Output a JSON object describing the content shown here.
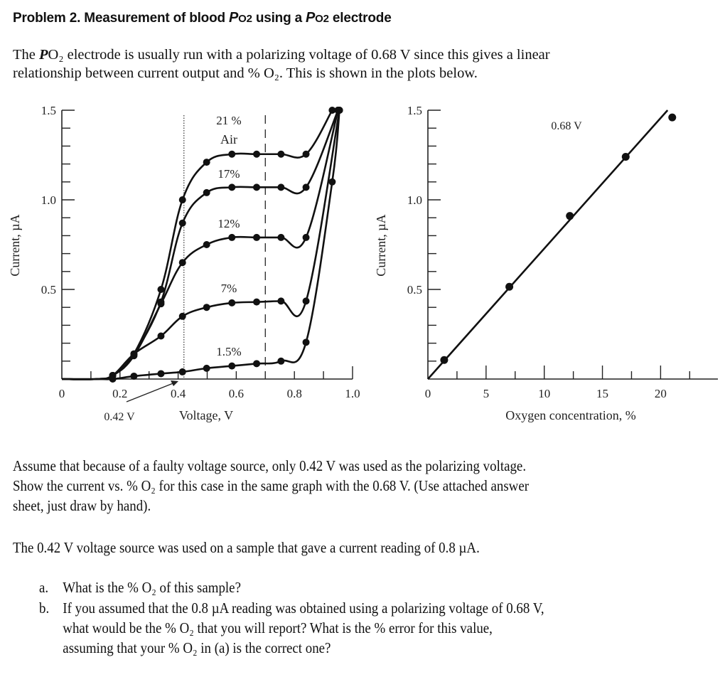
{
  "title": {
    "pre": "Problem 2. Measurement of blood ",
    "p1": "P",
    "o1": "O2",
    "mid": " using a ",
    "p2": "P",
    "o2": "O2",
    "post": " electrode"
  },
  "intro": {
    "l1_pre": "The ",
    "l1_p": "P",
    "l1_o": "O₂",
    "l1_post": " electrode is usually run with a polarizing voltage of 0.68 V since this gives a linear",
    "l2": "relationship between current output and % O₂. This is shown in the plots below."
  },
  "para2": {
    "l1": "Assume that because of a faulty voltage source, only 0.42 V was used as the polarizing voltage.",
    "l2": "Show the current vs. % O₂ for this case in the same graph with the 0.68 V. (Use attached answer",
    "l3": "sheet, just draw by hand)."
  },
  "para3": "The 0.42 V voltage source was used on a sample that gave a current reading of 0.8 µA.",
  "questions": [
    {
      "marker": "a.",
      "lines": [
        "What is the % O₂ of this sample?"
      ]
    },
    {
      "marker": "b.",
      "lines": [
        "If you assumed that the 0.8 µA reading was obtained using a polarizing voltage of 0.68 V,",
        "what would be the % O₂ that you will report? What is the % error for this value,",
        "assuming that your % O₂ in (a) is the correct one?"
      ]
    }
  ],
  "chart_data": [
    {
      "type": "line",
      "xlabel": "Voltage, V",
      "ylabel": "Current, µA",
      "xlim": [
        0,
        1.0
      ],
      "ylim": [
        0,
        1.5
      ],
      "xticks": [
        "0",
        "0.2",
        "0.4",
        "0.6",
        "0.8",
        "1.0"
      ],
      "yticks": [
        "0.5",
        "1.0",
        "1.5"
      ],
      "grid": false,
      "annotations": {
        "arrow_label": "0.42 V",
        "dotted_line_v": 0.42,
        "dashed_line_v": 0.7
      },
      "series": [
        {
          "name": "21 %",
          "name2": "Air",
          "points": [
            [
              0.175,
              0.02
            ],
            [
              0.248,
              0.14
            ],
            [
              0.341,
              0.5
            ],
            [
              0.415,
              1.0
            ],
            [
              0.498,
              1.21
            ],
            [
              0.585,
              1.255
            ],
            [
              0.67,
              1.255
            ],
            [
              0.754,
              1.255
            ],
            [
              0.84,
              1.255
            ],
            [
              0.93,
              1.5
            ]
          ]
        },
        {
          "name": "17%",
          "points": [
            [
              0.175,
              0.02
            ],
            [
              0.248,
              0.14
            ],
            [
              0.341,
              0.43
            ],
            [
              0.415,
              0.87
            ],
            [
              0.498,
              1.04
            ],
            [
              0.585,
              1.07
            ],
            [
              0.67,
              1.07
            ],
            [
              0.754,
              1.07
            ],
            [
              0.84,
              1.07
            ],
            [
              0.95,
              1.5
            ]
          ]
        },
        {
          "name": "12%",
          "points": [
            [
              0.175,
              0.02
            ],
            [
              0.248,
              0.13
            ],
            [
              0.341,
              0.42
            ],
            [
              0.415,
              0.65
            ],
            [
              0.498,
              0.75
            ],
            [
              0.585,
              0.79
            ],
            [
              0.67,
              0.79
            ],
            [
              0.754,
              0.79
            ],
            [
              0.84,
              0.79
            ],
            [
              0.95,
              1.5
            ]
          ]
        },
        {
          "name": "7%",
          "points": [
            [
              0.175,
              0.02
            ],
            [
              0.248,
              0.14
            ],
            [
              0.341,
              0.24
            ],
            [
              0.415,
              0.35
            ],
            [
              0.498,
              0.4
            ],
            [
              0.585,
              0.425
            ],
            [
              0.67,
              0.43
            ],
            [
              0.754,
              0.435
            ],
            [
              0.84,
              0.435
            ],
            [
              0.955,
              1.5
            ]
          ]
        },
        {
          "name": "1.5%",
          "points": [
            [
              0.175,
              0.0
            ],
            [
              0.248,
              0.016
            ],
            [
              0.341,
              0.03
            ],
            [
              0.415,
              0.04
            ],
            [
              0.498,
              0.06
            ],
            [
              0.585,
              0.073
            ],
            [
              0.67,
              0.086
            ],
            [
              0.754,
              0.1
            ],
            [
              0.84,
              0.205
            ],
            [
              0.93,
              1.1
            ],
            [
              0.955,
              1.5
            ]
          ]
        }
      ]
    },
    {
      "type": "scatter",
      "xlabel": "Oxygen concentration, %",
      "ylabel": "Current, µA",
      "xlim": [
        0,
        25
      ],
      "ylim": [
        0,
        1.5
      ],
      "xticks": [
        "0",
        "5",
        "10",
        "15",
        "20"
      ],
      "yticks": [
        "0.5",
        "1.0",
        "1.5"
      ],
      "grid": false,
      "annotation": "0.68 V",
      "points": [
        [
          1.4,
          0.106
        ],
        [
          7,
          0.515
        ],
        [
          12.2,
          0.91
        ],
        [
          17,
          1.24
        ],
        [
          21,
          1.46
        ]
      ],
      "fit_line": [
        [
          0,
          0
        ],
        [
          20.6,
          1.5
        ]
      ]
    }
  ]
}
